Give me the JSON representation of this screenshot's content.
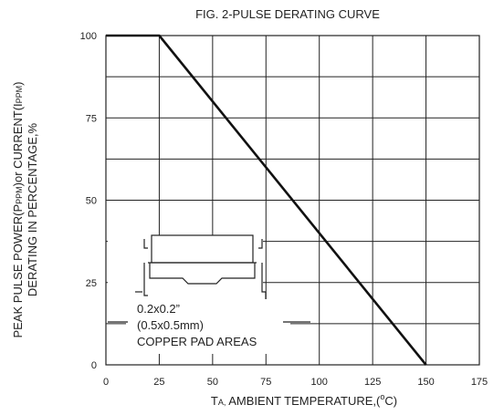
{
  "chart_data": {
    "type": "line",
    "title": "FIG. 2-PULSE DERATING CURVE",
    "xlabel": {
      "part1": "T",
      "sub": "A,",
      "part2": " AMBIENT TEMPERATURE,(",
      "deg": "o",
      "part3": "C)"
    },
    "ylabel": {
      "line1_a": "PEAK PULSE POWER(P",
      "line1_sub1": "PPM",
      "line1_b": ")or CURRENT(I",
      "line1_sub2": "PPM",
      "line1_c": ")",
      "line2": "DERATING IN PERCENTAGE,%"
    },
    "xlim": [
      0,
      175
    ],
    "ylim": [
      0,
      100
    ],
    "xticks": [
      0,
      25,
      50,
      75,
      100,
      125,
      150,
      175
    ],
    "yticks": [
      0,
      25,
      50,
      75,
      100
    ],
    "grid": true,
    "series": [
      {
        "x": [
          0,
          25,
          150
        ],
        "y": [
          100,
          100,
          0
        ]
      }
    ],
    "annotation": {
      "line1": "0.2x0.2”",
      "line2": "(0.5x0.5mm)",
      "line3": "COPPER PAD AREAS"
    }
  }
}
